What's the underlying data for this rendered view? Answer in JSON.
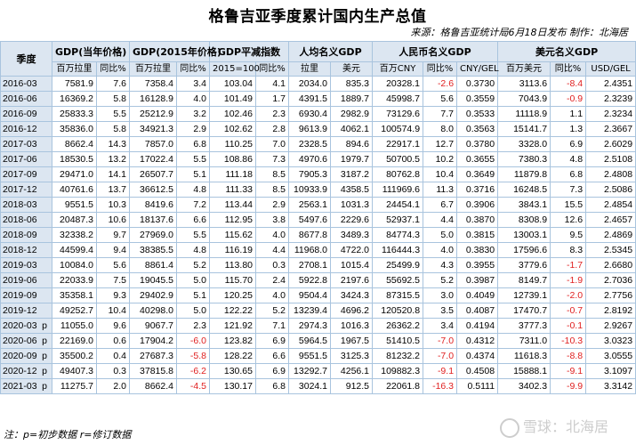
{
  "title": "格鲁吉亚季度累计国内生产总值",
  "source": "来源：格鲁吉亚统计局6月18日发布 制作：北海居",
  "footnote": "注：p=初步数据 r=修订数据",
  "watermark": "雪球：北海居",
  "headers": {
    "season": "季度",
    "groups": [
      "GDP(当年价格)",
      "GDP(2015年价格)",
      "GDP平减指数",
      "人均名义GDP",
      "人民币名义GDP",
      "美元名义GDP"
    ],
    "sub": [
      "百万拉里",
      "同比%",
      "百万拉里",
      "同比%",
      "2015=100",
      "同比%",
      "拉里",
      "美元",
      "百万CNY",
      "同比%",
      "CNY/GEL",
      "百万美元",
      "同比%",
      "USD/GEL"
    ]
  },
  "rows": [
    {
      "q": "2016-03",
      "f": "",
      "v": [
        "7581.9",
        "7.6",
        "7358.4",
        "3.4",
        "103.04",
        "4.1",
        "2034.0",
        "835.3",
        "20328.1",
        "-2.6",
        "0.3730",
        "3113.6",
        "-8.4",
        "2.4351"
      ]
    },
    {
      "q": "2016-06",
      "f": "",
      "v": [
        "16369.2",
        "5.8",
        "16128.9",
        "4.0",
        "101.49",
        "1.7",
        "4391.5",
        "1889.7",
        "45998.7",
        "5.6",
        "0.3559",
        "7043.9",
        "-0.9",
        "2.3239"
      ]
    },
    {
      "q": "2016-09",
      "f": "",
      "v": [
        "25833.3",
        "5.5",
        "25212.9",
        "3.2",
        "102.46",
        "2.3",
        "6930.4",
        "2982.9",
        "73129.6",
        "7.7",
        "0.3533",
        "11118.9",
        "1.1",
        "2.3234"
      ]
    },
    {
      "q": "2016-12",
      "f": "",
      "v": [
        "35836.0",
        "5.8",
        "34921.3",
        "2.9",
        "102.62",
        "2.8",
        "9613.9",
        "4062.1",
        "100574.9",
        "8.0",
        "0.3563",
        "15141.7",
        "1.3",
        "2.3667"
      ]
    },
    {
      "q": "2017-03",
      "f": "",
      "v": [
        "8662.4",
        "14.3",
        "7857.0",
        "6.8",
        "110.25",
        "7.0",
        "2328.5",
        "894.6",
        "22917.1",
        "12.7",
        "0.3780",
        "3328.0",
        "6.9",
        "2.6029"
      ]
    },
    {
      "q": "2017-06",
      "f": "",
      "v": [
        "18530.5",
        "13.2",
        "17022.4",
        "5.5",
        "108.86",
        "7.3",
        "4970.6",
        "1979.7",
        "50700.5",
        "10.2",
        "0.3655",
        "7380.3",
        "4.8",
        "2.5108"
      ]
    },
    {
      "q": "2017-09",
      "f": "",
      "v": [
        "29471.0",
        "14.1",
        "26507.7",
        "5.1",
        "111.18",
        "8.5",
        "7905.3",
        "3187.2",
        "80762.8",
        "10.4",
        "0.3649",
        "11879.8",
        "6.8",
        "2.4808"
      ]
    },
    {
      "q": "2017-12",
      "f": "",
      "v": [
        "40761.6",
        "13.7",
        "36612.5",
        "4.8",
        "111.33",
        "8.5",
        "10933.9",
        "4358.5",
        "111969.6",
        "11.3",
        "0.3716",
        "16248.5",
        "7.3",
        "2.5086"
      ]
    },
    {
      "q": "2018-03",
      "f": "",
      "v": [
        "9551.5",
        "10.3",
        "8419.6",
        "7.2",
        "113.44",
        "2.9",
        "2563.1",
        "1031.3",
        "24454.1",
        "6.7",
        "0.3906",
        "3843.1",
        "15.5",
        "2.4854"
      ]
    },
    {
      "q": "2018-06",
      "f": "",
      "v": [
        "20487.3",
        "10.6",
        "18137.6",
        "6.6",
        "112.95",
        "3.8",
        "5497.6",
        "2229.6",
        "52937.1",
        "4.4",
        "0.3870",
        "8308.9",
        "12.6",
        "2.4657"
      ]
    },
    {
      "q": "2018-09",
      "f": "",
      "v": [
        "32338.2",
        "9.7",
        "27969.0",
        "5.5",
        "115.62",
        "4.0",
        "8677.8",
        "3489.3",
        "84774.3",
        "5.0",
        "0.3815",
        "13003.1",
        "9.5",
        "2.4869"
      ]
    },
    {
      "q": "2018-12",
      "f": "",
      "v": [
        "44599.4",
        "9.4",
        "38385.5",
        "4.8",
        "116.19",
        "4.4",
        "11968.0",
        "4722.0",
        "116444.3",
        "4.0",
        "0.3830",
        "17596.6",
        "8.3",
        "2.5345"
      ]
    },
    {
      "q": "2019-03",
      "f": "",
      "v": [
        "10084.0",
        "5.6",
        "8861.4",
        "5.2",
        "113.80",
        "0.3",
        "2708.1",
        "1015.4",
        "25499.9",
        "4.3",
        "0.3955",
        "3779.6",
        "-1.7",
        "2.6680"
      ]
    },
    {
      "q": "2019-06",
      "f": "",
      "v": [
        "22033.9",
        "7.5",
        "19045.5",
        "5.0",
        "115.70",
        "2.4",
        "5922.8",
        "2197.6",
        "55692.5",
        "5.2",
        "0.3987",
        "8149.7",
        "-1.9",
        "2.7036"
      ]
    },
    {
      "q": "2019-09",
      "f": "",
      "v": [
        "35358.1",
        "9.3",
        "29402.9",
        "5.1",
        "120.25",
        "4.0",
        "9504.4",
        "3424.3",
        "87315.5",
        "3.0",
        "0.4049",
        "12739.1",
        "-2.0",
        "2.7756"
      ]
    },
    {
      "q": "2019-12",
      "f": "",
      "v": [
        "49252.7",
        "10.4",
        "40298.0",
        "5.0",
        "122.22",
        "5.2",
        "13239.4",
        "4696.2",
        "120520.8",
        "3.5",
        "0.4087",
        "17470.7",
        "-0.7",
        "2.8192"
      ]
    },
    {
      "q": "2020-03",
      "f": "p",
      "v": [
        "11055.0",
        "9.6",
        "9067.7",
        "2.3",
        "121.92",
        "7.1",
        "2974.3",
        "1016.3",
        "26362.2",
        "3.4",
        "0.4194",
        "3777.3",
        "-0.1",
        "2.9267"
      ]
    },
    {
      "q": "2020-06",
      "f": "p",
      "v": [
        "22169.0",
        "0.6",
        "17904.2",
        "-6.0",
        "123.82",
        "6.9",
        "5964.5",
        "1967.5",
        "51410.5",
        "-7.0",
        "0.4312",
        "7311.0",
        "-10.3",
        "3.0323"
      ]
    },
    {
      "q": "2020-09",
      "f": "p",
      "v": [
        "35500.2",
        "0.4",
        "27687.3",
        "-5.8",
        "128.22",
        "6.6",
        "9551.5",
        "3125.3",
        "81232.2",
        "-7.0",
        "0.4374",
        "11618.3",
        "-8.8",
        "3.0555"
      ]
    },
    {
      "q": "2020-12",
      "f": "p",
      "v": [
        "49407.3",
        "0.3",
        "37815.8",
        "-6.2",
        "130.65",
        "6.9",
        "13292.7",
        "4256.1",
        "109882.3",
        "-9.1",
        "0.4508",
        "15888.1",
        "-9.1",
        "3.1097"
      ]
    },
    {
      "q": "2021-03",
      "f": "p",
      "v": [
        "11275.7",
        "2.0",
        "8662.4",
        "-4.5",
        "130.17",
        "6.8",
        "3024.1",
        "912.5",
        "22061.8",
        "-16.3",
        "0.5111",
        "3402.3",
        "-9.9",
        "3.3142"
      ]
    }
  ]
}
